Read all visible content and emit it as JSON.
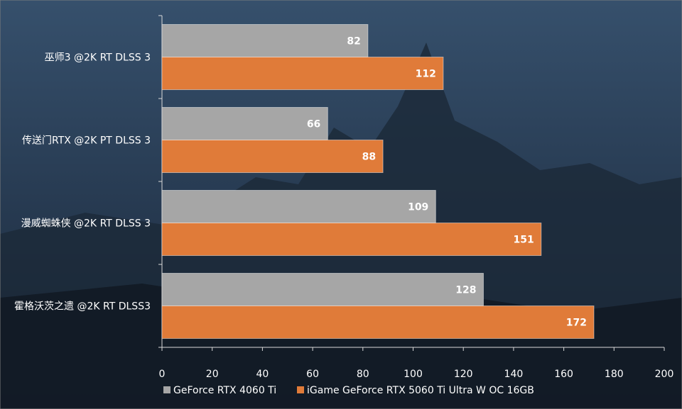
{
  "chart_data": {
    "type": "bar",
    "orientation": "horizontal",
    "categories": [
      "巫师3 @2K RT DLSS 3",
      "传送门RTX @2K PT DLSS 3",
      "漫威蜘蛛侠 @2K RT DLSS 3",
      "霍格沃茨之遗 @2K RT DLSS3"
    ],
    "series": [
      {
        "name": "GeForce RTX 4060 Ti",
        "color": "#a6a6a6",
        "values": [
          82,
          66,
          109,
          128
        ]
      },
      {
        "name": "iGame GeForce RTX 5060 Ti Ultra W OC 16GB",
        "color": "#e07b39",
        "values": [
          112,
          88,
          151,
          172
        ]
      }
    ],
    "xlim": [
      0,
      200
    ],
    "x_ticks": [
      0,
      20,
      40,
      60,
      80,
      100,
      120,
      140,
      160,
      180,
      200
    ],
    "title": "",
    "xlabel": "",
    "ylabel": "",
    "grid": false,
    "legend_position": "bottom",
    "data_labels": true
  }
}
